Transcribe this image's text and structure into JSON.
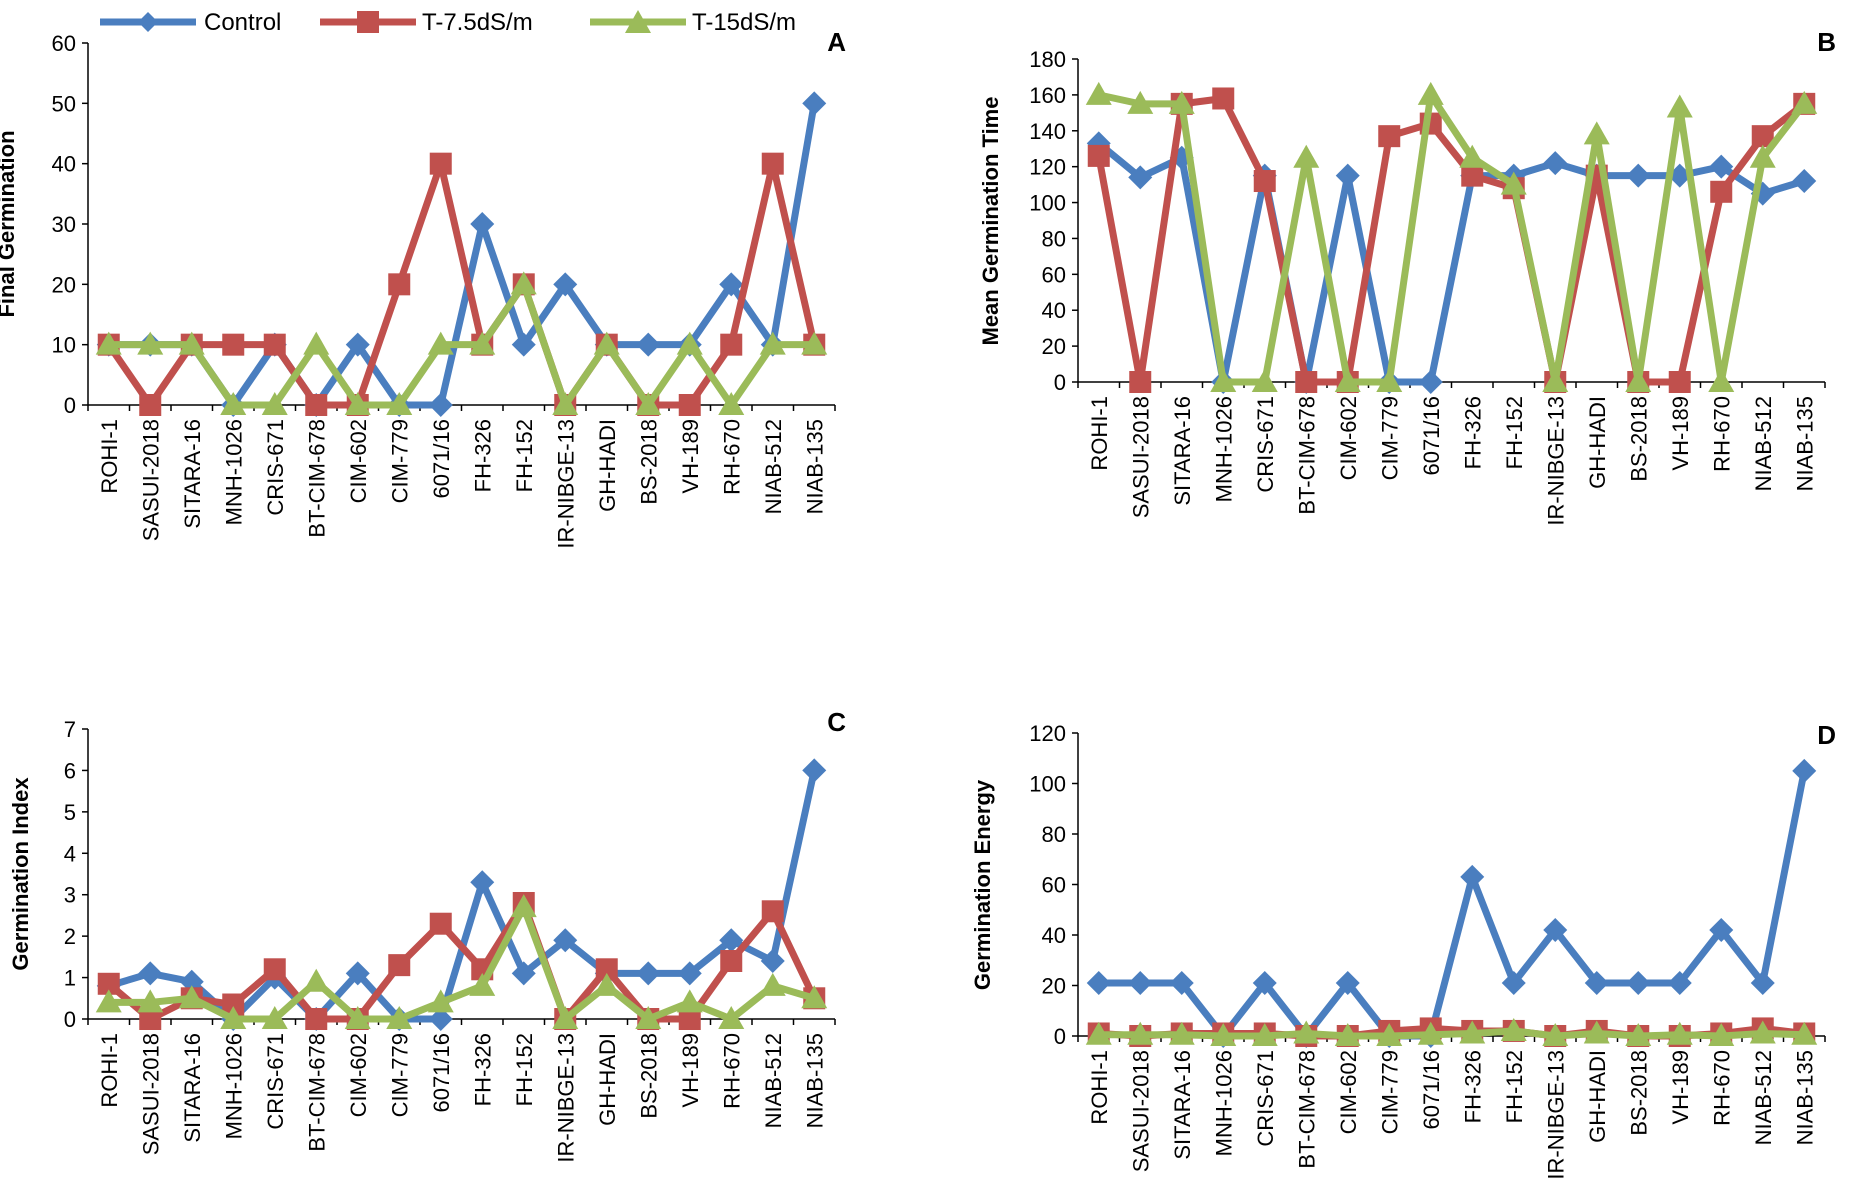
{
  "legend": [
    {
      "name": "Control",
      "color": "#4a7ebf",
      "marker": "diamond"
    },
    {
      "name": "T-7.5dS/m",
      "color": "#c0504d",
      "marker": "square"
    },
    {
      "name": "T-15dS/m",
      "color": "#9bbb59",
      "marker": "triangle"
    }
  ],
  "chart_data": [
    {
      "panel": "A",
      "type": "line",
      "ylabel": "Final Germination",
      "ylim": [
        0,
        60
      ],
      "yticks": [
        0,
        10,
        20,
        30,
        40,
        50,
        60
      ],
      "categories": [
        "ROHI-1",
        "SASUI-2018",
        "SITARA-16",
        "MNH-1026",
        "CRIS-671",
        "BT-CIM-678",
        "CIM-602",
        "CIM-779",
        "6071/16",
        "FH-326",
        "FH-152",
        "IR-NIBGE-13",
        "GH-HADI",
        "BS-2018",
        "VH-189",
        "RH-670",
        "NIAB-512",
        "NIAB-135"
      ],
      "series": [
        {
          "name": "Control",
          "values": [
            10,
            10,
            10,
            0,
            10,
            0,
            10,
            0,
            0,
            30,
            10,
            20,
            10,
            10,
            10,
            20,
            10,
            50
          ]
        },
        {
          "name": "T-7.5dS/m",
          "values": [
            10,
            0,
            10,
            10,
            10,
            0,
            0,
            20,
            40,
            10,
            20,
            0,
            10,
            0,
            0,
            10,
            40,
            10
          ]
        },
        {
          "name": "T-15dS/m",
          "values": [
            10,
            10,
            10,
            0,
            0,
            10,
            0,
            0,
            10,
            10,
            20,
            0,
            10,
            0,
            10,
            0,
            10,
            10
          ]
        }
      ]
    },
    {
      "panel": "B",
      "type": "line",
      "ylabel": "Mean Germination Time",
      "ylim": [
        0,
        180
      ],
      "yticks": [
        0,
        20,
        40,
        60,
        80,
        100,
        120,
        140,
        160,
        180
      ],
      "categories": [
        "ROHI-1",
        "SASUI-2018",
        "SITARA-16",
        "MNH-1026",
        "CRIS-671",
        "BT-CIM-678",
        "CIM-602",
        "CIM-779",
        "6071/16",
        "FH-326",
        "FH-152",
        "IR-NIBGE-13",
        "GH-HADI",
        "BS-2018",
        "VH-189",
        "RH-670",
        "NIAB-512",
        "NIAB-135"
      ],
      "series": [
        {
          "name": "Control",
          "values": [
            133,
            114,
            125,
            0,
            115,
            0,
            115,
            0,
            0,
            115,
            115,
            122,
            115,
            115,
            115,
            120,
            105,
            112
          ]
        },
        {
          "name": "T-7.5dS/m",
          "values": [
            126,
            0,
            155,
            158,
            112,
            0,
            0,
            137,
            144,
            115,
            108,
            0,
            115,
            0,
            0,
            106,
            137,
            155
          ]
        },
        {
          "name": "T-15dS/m",
          "values": [
            160,
            155,
            155,
            0,
            0,
            125,
            0,
            0,
            160,
            125,
            110,
            0,
            138,
            0,
            153,
            0,
            125,
            155
          ]
        }
      ]
    },
    {
      "panel": "C",
      "type": "line",
      "ylabel": "Germination Index",
      "ylim": [
        0,
        7
      ],
      "yticks": [
        0,
        1,
        2,
        3,
        4,
        5,
        6,
        7
      ],
      "categories": [
        "ROHI-1",
        "SASUI-2018",
        "SITARA-16",
        "MNH-1026",
        "CRIS-671",
        "BT-CIM-678",
        "CIM-602",
        "CIM-779",
        "6071/16",
        "FH-326",
        "FH-152",
        "IR-NIBGE-13",
        "GH-HADI",
        "BS-2018",
        "VH-189",
        "RH-670",
        "NIAB-512",
        "NIAB-135"
      ],
      "series": [
        {
          "name": "Control",
          "values": [
            0.8,
            1.1,
            0.9,
            0,
            1.0,
            0,
            1.1,
            0,
            0,
            3.3,
            1.1,
            1.9,
            1.1,
            1.1,
            1.1,
            1.9,
            1.4,
            6.0
          ]
        },
        {
          "name": "T-7.5dS/m",
          "values": [
            0.85,
            0,
            0.5,
            0.35,
            1.2,
            0,
            0,
            1.3,
            2.3,
            1.2,
            2.8,
            0,
            1.2,
            0,
            0,
            1.4,
            2.6,
            0.5
          ]
        },
        {
          "name": "T-15dS/m",
          "values": [
            0.4,
            0.4,
            0.5,
            0,
            0,
            0.9,
            0,
            0,
            0.4,
            0.8,
            2.7,
            0,
            0.8,
            0,
            0.4,
            0,
            0.8,
            0.5
          ]
        }
      ]
    },
    {
      "panel": "D",
      "type": "line",
      "ylabel": "Germination Energy",
      "ylim": [
        0,
        120
      ],
      "yticks": [
        0,
        20,
        40,
        60,
        80,
        100,
        120
      ],
      "categories": [
        "ROHI-1",
        "SASUI-2018",
        "SITARA-16",
        "MNH-1026",
        "CRIS-671",
        "BT-CIM-678",
        "CIM-602",
        "CIM-779",
        "6071/16",
        "FH-326",
        "FH-152",
        "IR-NIBGE-13",
        "GH-HADI",
        "BS-2018",
        "VH-189",
        "RH-670",
        "NIAB-512",
        "NIAB-135"
      ],
      "series": [
        {
          "name": "Control",
          "values": [
            21,
            21,
            21,
            0,
            21,
            0,
            21,
            0,
            0,
            63,
            21,
            42,
            21,
            21,
            21,
            42,
            21,
            105
          ]
        },
        {
          "name": "T-7.5dS/m",
          "values": [
            1,
            0,
            1,
            1,
            1,
            0,
            0,
            2,
            3,
            2,
            2,
            0,
            2,
            0,
            0,
            1,
            3,
            1
          ]
        },
        {
          "name": "T-15dS/m",
          "values": [
            0.5,
            0.5,
            0.5,
            0,
            0,
            1,
            0,
            0,
            0.5,
            1,
            2,
            0,
            1,
            0,
            0.5,
            0,
            1,
            0.5
          ]
        }
      ]
    }
  ]
}
